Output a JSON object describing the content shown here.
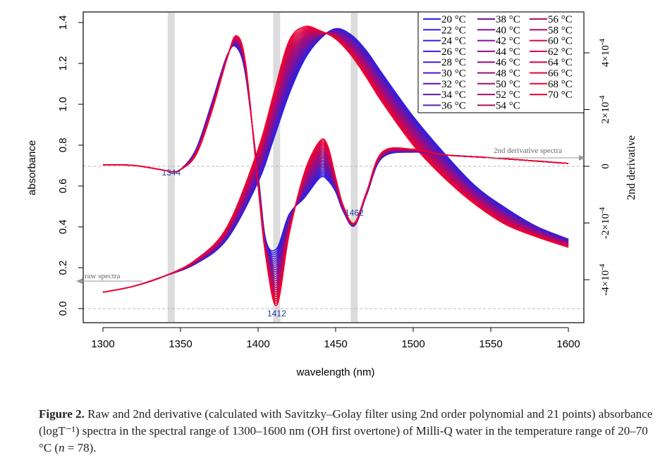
{
  "chart_data": {
    "type": "line",
    "xlabel": "wavelength (nm)",
    "ylabel": "absorbance",
    "y2label": "2nd derivative",
    "xlim": [
      1290,
      1605
    ],
    "ylim": [
      -0.03,
      1.45
    ],
    "y2lim": [
      -0.00052,
      0.00054
    ],
    "x_ticks": [
      1300,
      1350,
      1400,
      1450,
      1500,
      1550,
      1600
    ],
    "y_ticks": [
      0.0,
      0.2,
      0.4,
      0.6,
      0.8,
      1.0,
      1.2,
      1.4
    ],
    "y_tick_labels": [
      "0.0",
      "0.2",
      "0.4",
      "0.6",
      "0.8",
      "1.0",
      "1.2",
      "1.4"
    ],
    "y2_ticks": [
      -0.0004,
      -0.0002,
      0,
      0.0002,
      0.0004
    ],
    "y2_tick_labels": [
      {
        "mant": "-4×10",
        "exp": "-4"
      },
      {
        "mant": "-2×10",
        "exp": "-4"
      },
      {
        "mant": "0",
        "exp": ""
      },
      {
        "mant": "2×10",
        "exp": "-4"
      },
      {
        "mant": "4×10",
        "exp": "-4"
      }
    ],
    "highlight_bands_nm": [
      1344,
      1412,
      1462
    ],
    "peak_labels": [
      {
        "text": "1344",
        "x": 1344
      },
      {
        "text": "1412",
        "x": 1412
      },
      {
        "text": "1462",
        "x": 1462
      }
    ],
    "annotations": {
      "raw": "raw spectra",
      "deriv": "2nd derivative spectra"
    },
    "raw_spectra": {
      "x": [
        1300,
        1320,
        1340,
        1360,
        1380,
        1400,
        1410,
        1420,
        1430,
        1440,
        1450,
        1460,
        1470,
        1480,
        1500,
        1520,
        1540,
        1560,
        1580,
        1600
      ],
      "at_20C": [
        0.08,
        0.11,
        0.16,
        0.22,
        0.34,
        0.62,
        0.83,
        1.05,
        1.22,
        1.32,
        1.37,
        1.34,
        1.26,
        1.15,
        0.94,
        0.76,
        0.6,
        0.49,
        0.4,
        0.34
      ],
      "at_70C": [
        0.08,
        0.11,
        0.16,
        0.24,
        0.4,
        0.78,
        1.05,
        1.31,
        1.38,
        1.36,
        1.32,
        1.24,
        1.13,
        1.01,
        0.8,
        0.64,
        0.51,
        0.41,
        0.35,
        0.3
      ]
    },
    "derivative_spectra": {
      "x": [
        1300,
        1320,
        1340,
        1344,
        1350,
        1360,
        1370,
        1380,
        1386,
        1392,
        1400,
        1405,
        1412,
        1420,
        1430,
        1440,
        1445,
        1450,
        1455,
        1462,
        1470,
        1480,
        1500,
        1520,
        1550,
        1600
      ],
      "at_20C": [
        5e-06,
        3e-06,
        -1.5e-05,
        -2e-05,
        -1.2e-05,
        6e-05,
        0.00022,
        0.00039,
        0.00042,
        0.00032,
        -3e-05,
        -0.00026,
        -0.00029,
        -0.00017,
        -0.00011,
        -4e-05,
        -5e-05,
        -9e-05,
        -0.00016,
        -0.00021,
        -0.0001,
        3e-05,
        5e-05,
        4e-05,
        3e-05,
        1e-05
      ],
      "at_70C": [
        5e-06,
        3e-06,
        -1.5e-05,
        -2e-05,
        -1.2e-05,
        4e-05,
        0.00019,
        0.00038,
        0.00046,
        0.00036,
        -7e-05,
        -0.00032,
        -0.00049,
        -0.00024,
        -2e-05,
        9e-05,
        7e-05,
        -4e-05,
        -0.00014,
        -0.0002,
        -9e-05,
        5e-05,
        6e-05,
        4e-05,
        3e-05,
        1e-05
      ]
    },
    "legend": {
      "placement": "top-right",
      "columns": [
        [
          "20 °C",
          "22 °C",
          "24 °C",
          "26 °C",
          "28 °C",
          "30 °C",
          "32 °C",
          "34 °C",
          "36 °C"
        ],
        [
          "38 °C",
          "40 °C",
          "42 °C",
          "44 °C",
          "46 °C",
          "48 °C",
          "50 °C",
          "52 °C",
          "54 °C"
        ],
        [
          "56 °C",
          "58 °C",
          "60 °C",
          "62 °C",
          "64 °C",
          "66 °C",
          "68 °C",
          "70 °C"
        ]
      ]
    },
    "colors": {
      "cold": "#2a1fe6",
      "hot": "#f2002e",
      "band": "#dcdcdc",
      "grid_dashed": "#b8b8b8"
    },
    "grid": false
  },
  "caption": {
    "label": "Figure 2.",
    "text": " Raw and 2nd derivative (calculated with Savitzky–Golay filter using 2nd order polynomial and 21 points) absorbance (logT⁻¹) spectra in the spectral range of 1300–1600 nm (OH first overtone) of Milli-Q water in the temperature range of 20–70 °C (",
    "n_symbol": "n",
    "n_value": " = 78)."
  }
}
